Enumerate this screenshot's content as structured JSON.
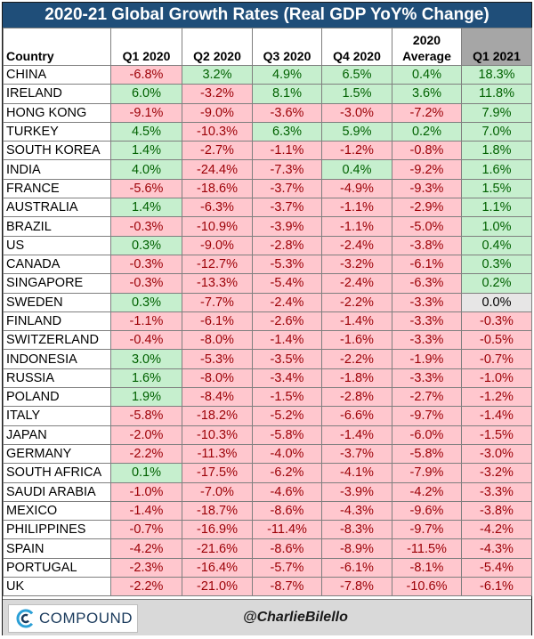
{
  "title": "2020-21 Global Growth Rates (Real GDP YoY% Change)",
  "footer": {
    "logo_text": "COMPOUND",
    "handle": "@CharlieBilello"
  },
  "colors": {
    "header_bg": "#1f4e79",
    "positive_bg": "#c6efce",
    "positive_text": "#006100",
    "negative_bg": "#ffc7ce",
    "negative_text": "#9c0006",
    "zero_bg": "#e7e6e6",
    "highlight_header": "#a6a6a6"
  },
  "chart_data": {
    "type": "table",
    "title": "2020-21 Global Growth Rates (Real GDP YoY% Change)",
    "columns": [
      "Country",
      "Q1 2020",
      "Q2 2020",
      "Q3 2020",
      "Q4 2020",
      "2020 Average",
      "Q1 2021"
    ],
    "rows": [
      {
        "country": "CHINA",
        "values": [
          "-6.8%",
          "3.2%",
          "4.9%",
          "6.5%",
          "0.4%",
          "18.3%"
        ]
      },
      {
        "country": "IRELAND",
        "values": [
          "6.0%",
          "-3.2%",
          "8.1%",
          "1.5%",
          "3.6%",
          "11.8%"
        ]
      },
      {
        "country": "HONG KONG",
        "values": [
          "-9.1%",
          "-9.0%",
          "-3.6%",
          "-3.0%",
          "-7.2%",
          "7.9%"
        ]
      },
      {
        "country": "TURKEY",
        "values": [
          "4.5%",
          "-10.3%",
          "6.3%",
          "5.9%",
          "0.2%",
          "7.0%"
        ]
      },
      {
        "country": "SOUTH KOREA",
        "values": [
          "1.4%",
          "-2.7%",
          "-1.1%",
          "-1.2%",
          "-0.8%",
          "1.8%"
        ]
      },
      {
        "country": "INDIA",
        "values": [
          "4.0%",
          "-24.4%",
          "-7.3%",
          "0.4%",
          "-9.2%",
          "1.6%"
        ]
      },
      {
        "country": "FRANCE",
        "values": [
          "-5.6%",
          "-18.6%",
          "-3.7%",
          "-4.9%",
          "-9.3%",
          "1.5%"
        ]
      },
      {
        "country": "AUSTRALIA",
        "values": [
          "1.4%",
          "-6.3%",
          "-3.7%",
          "-1.1%",
          "-2.9%",
          "1.1%"
        ]
      },
      {
        "country": "BRAZIL",
        "values": [
          "-0.3%",
          "-10.9%",
          "-3.9%",
          "-1.1%",
          "-5.0%",
          "1.0%"
        ]
      },
      {
        "country": "US",
        "values": [
          "0.3%",
          "-9.0%",
          "-2.8%",
          "-2.4%",
          "-3.8%",
          "0.4%"
        ]
      },
      {
        "country": "CANADA",
        "values": [
          "-0.3%",
          "-12.7%",
          "-5.3%",
          "-3.2%",
          "-6.1%",
          "0.3%"
        ]
      },
      {
        "country": "SINGAPORE",
        "values": [
          "-0.3%",
          "-13.3%",
          "-5.4%",
          "-2.4%",
          "-6.3%",
          "0.2%"
        ]
      },
      {
        "country": "SWEDEN",
        "values": [
          "0.3%",
          "-7.7%",
          "-2.4%",
          "-2.2%",
          "-3.3%",
          "0.0%"
        ]
      },
      {
        "country": "FINLAND",
        "values": [
          "-1.1%",
          "-6.1%",
          "-2.6%",
          "-1.4%",
          "-3.3%",
          "-0.3%"
        ]
      },
      {
        "country": "SWITZERLAND",
        "values": [
          "-0.4%",
          "-8.0%",
          "-1.4%",
          "-1.6%",
          "-3.3%",
          "-0.5%"
        ]
      },
      {
        "country": "INDONESIA",
        "values": [
          "3.0%",
          "-5.3%",
          "-3.5%",
          "-2.2%",
          "-1.9%",
          "-0.7%"
        ]
      },
      {
        "country": "RUSSIA",
        "values": [
          "1.6%",
          "-8.0%",
          "-3.4%",
          "-1.8%",
          "-3.3%",
          "-1.0%"
        ]
      },
      {
        "country": "POLAND",
        "values": [
          "1.9%",
          "-8.4%",
          "-1.5%",
          "-2.8%",
          "-2.7%",
          "-1.2%"
        ]
      },
      {
        "country": "ITALY",
        "values": [
          "-5.8%",
          "-18.2%",
          "-5.2%",
          "-6.6%",
          "-9.7%",
          "-1.4%"
        ]
      },
      {
        "country": "JAPAN",
        "values": [
          "-2.0%",
          "-10.3%",
          "-5.8%",
          "-1.4%",
          "-6.0%",
          "-1.5%"
        ]
      },
      {
        "country": "GERMANY",
        "values": [
          "-2.2%",
          "-11.3%",
          "-4.0%",
          "-3.7%",
          "-5.8%",
          "-3.0%"
        ]
      },
      {
        "country": "SOUTH AFRICA",
        "values": [
          "0.1%",
          "-17.5%",
          "-6.2%",
          "-4.1%",
          "-7.9%",
          "-3.2%"
        ]
      },
      {
        "country": "SAUDI ARABIA",
        "values": [
          "-1.0%",
          "-7.0%",
          "-4.6%",
          "-3.9%",
          "-4.2%",
          "-3.3%"
        ]
      },
      {
        "country": "MEXICO",
        "values": [
          "-1.4%",
          "-18.7%",
          "-8.6%",
          "-4.3%",
          "-9.6%",
          "-3.8%"
        ]
      },
      {
        "country": "PHILIPPINES",
        "values": [
          "-0.7%",
          "-16.9%",
          "-11.4%",
          "-8.3%",
          "-9.7%",
          "-4.2%"
        ]
      },
      {
        "country": "SPAIN",
        "values": [
          "-4.2%",
          "-21.6%",
          "-8.6%",
          "-8.9%",
          "-11.5%",
          "-4.3%"
        ]
      },
      {
        "country": "PORTUGAL",
        "values": [
          "-2.3%",
          "-16.4%",
          "-5.7%",
          "-6.1%",
          "-8.1%",
          "-5.4%"
        ]
      },
      {
        "country": "UK",
        "values": [
          "-2.2%",
          "-21.0%",
          "-8.7%",
          "-7.8%",
          "-10.6%",
          "-6.1%"
        ]
      }
    ]
  }
}
